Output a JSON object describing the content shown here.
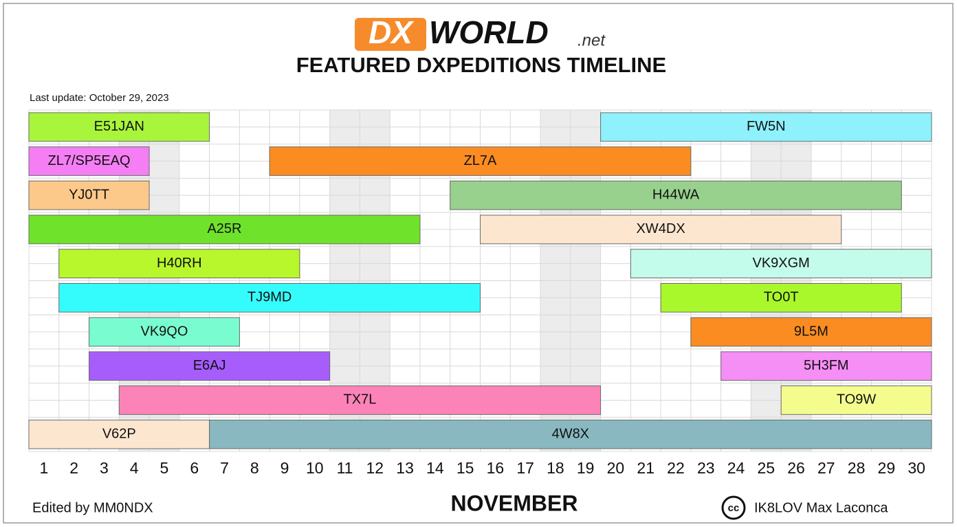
{
  "chart_data": {
    "type": "timeline",
    "logo": {
      "mark": "DX",
      "word": "WORLD",
      "suffix": ".net"
    },
    "title": "FEATURED DXPEDITIONS TIMELINE",
    "subtitle": "Last update: October 29, 2023",
    "x_label": "NOVEMBER",
    "xlim": [
      0.5,
      30.5
    ],
    "xticks": [
      1,
      2,
      3,
      4,
      5,
      6,
      7,
      8,
      9,
      10,
      11,
      12,
      13,
      14,
      15,
      16,
      17,
      18,
      19,
      20,
      21,
      22,
      23,
      24,
      25,
      26,
      27,
      28,
      29,
      30
    ],
    "shaded_days": [
      4,
      5,
      11,
      12,
      18,
      19,
      25,
      26
    ],
    "grid": true,
    "rows": [
      [
        {
          "name": "E51JAN",
          "start": 1,
          "end": 6,
          "color": "#a8f53c"
        },
        {
          "name": "FW5N",
          "start": 20,
          "end": 30,
          "color": "#8ef1fc"
        }
      ],
      [
        {
          "name": "ZL7/SP5EAQ",
          "start": 1,
          "end": 4,
          "color": "#f57ef5"
        },
        {
          "name": "ZL7A",
          "start": 9,
          "end": 22,
          "color": "#fa8c22"
        }
      ],
      [
        {
          "name": "YJ0TT",
          "start": 1,
          "end": 4,
          "color": "#fcc98b"
        },
        {
          "name": "H44WA",
          "start": 15,
          "end": 29,
          "color": "#98d08d"
        }
      ],
      [
        {
          "name": "A25R",
          "start": 1,
          "end": 13,
          "color": "#6fe22b"
        },
        {
          "name": "XW4DX",
          "start": 16,
          "end": 27,
          "color": "#fde6cf"
        }
      ],
      [
        {
          "name": "H40RH",
          "start": 2,
          "end": 9,
          "color": "#b7f72b"
        },
        {
          "name": "VK9XGM",
          "start": 21,
          "end": 30,
          "color": "#c4fcec"
        }
      ],
      [
        {
          "name": "TJ9MD",
          "start": 2,
          "end": 15,
          "color": "#35fcfc"
        },
        {
          "name": "TO0T",
          "start": 22,
          "end": 29,
          "color": "#a9f82b"
        }
      ],
      [
        {
          "name": "VK9QO",
          "start": 3,
          "end": 7,
          "color": "#7afcd1"
        },
        {
          "name": "9L5M",
          "start": 23,
          "end": 30,
          "color": "#fa8c22"
        }
      ],
      [
        {
          "name": "E6AJ",
          "start": 3,
          "end": 10,
          "color": "#a65dfc"
        },
        {
          "name": "5H3FM",
          "start": 24,
          "end": 30,
          "color": "#f58ef5"
        }
      ],
      [
        {
          "name": "TX7L",
          "start": 4,
          "end": 19,
          "color": "#fc83b8"
        },
        {
          "name": "TO9W",
          "start": 26,
          "end": 30,
          "color": "#f4fc8e"
        }
      ],
      [
        {
          "name": "V62P",
          "start": 1,
          "end": 6,
          "color": "#fde6cf"
        },
        {
          "name": "4W8X",
          "start": 7,
          "end": 30,
          "color": "#89b8c1"
        }
      ]
    ],
    "footer_left": "Edited by MM0NDX",
    "license_icon": "cc",
    "footer_right": "IK8LOV Max Laconca"
  }
}
